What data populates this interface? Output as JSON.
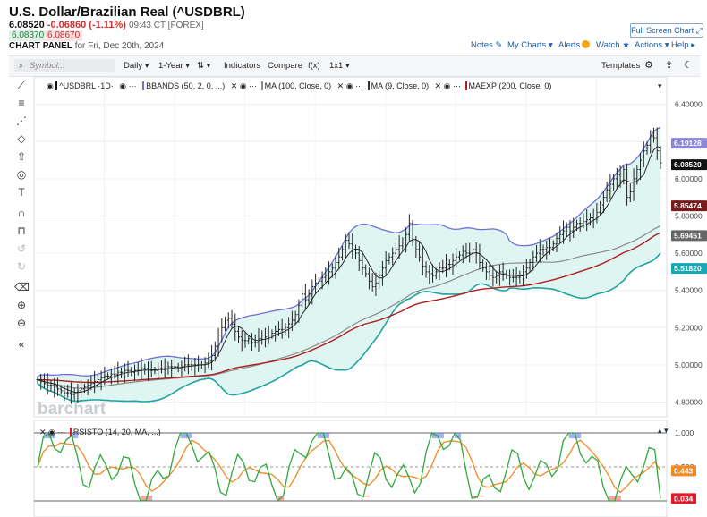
{
  "header": {
    "title": "U.S. Dollar/Brazilian Real (^USDBRL)",
    "last": "6.08520",
    "change": "-0.06860 (-1.11%)",
    "time": "09:43 CT [FOREX]",
    "bid": "6.08370",
    "ask": "6.08670",
    "panel_label": "CHART PANEL",
    "panel_date": "for Fri, Dec 20th, 2024",
    "fullscreen": "Full Screen Chart",
    "links": [
      "Notes",
      "My Charts",
      "Alerts",
      "Watch",
      "Actions",
      "Help"
    ]
  },
  "toolbar": {
    "symbol_placeholder": "Symbol...",
    "items": [
      "Daily",
      "1-Year",
      "Indicators",
      "Compare",
      "f(x)",
      "1x1"
    ],
    "templates": "Templates"
  },
  "legend": {
    "main": "^USDBRL ·1D·",
    "bbands": "BBANDS (50, 2, 0, ...)",
    "ma100": "MA (100, Close, 0)",
    "ma9": "MA (9, Close, 0)",
    "maexp": "MAEXP (200, Close, 0)",
    "rsisto": "RSISTO (14, 20, MA, ...)"
  },
  "watermark": "barchart",
  "colors": {
    "up": "#1a1a1a",
    "bband_upper": "#6f6fd6",
    "bband_lower": "#1fa3a0",
    "bband_fill": "#dff5f2",
    "ma100": "#8a8a8a",
    "ma9": "#2a2a2a",
    "maexp": "#b01e1e",
    "rsi_green": "#2eaa3c",
    "rsi_orange": "#f08a24"
  },
  "badges": [
    {
      "label": "6.19128",
      "color": "#8e84d8"
    },
    {
      "label": "6.08520",
      "color": "#111111"
    },
    {
      "label": "5.85474",
      "color": "#7a1a1a"
    },
    {
      "label": "5.69451",
      "color": "#666666"
    },
    {
      "label": "5.51820",
      "color": "#17a7b6"
    }
  ],
  "rsi_badges": [
    {
      "label": "0.443",
      "color": "#f08a24"
    },
    {
      "label": "0.034",
      "color": "#e0192b"
    }
  ],
  "chart_data": {
    "type": "candlestick",
    "title": "U.S. Dollar/Brazilian Real (^USDBRL)",
    "y_axis": {
      "ticks": [
        4.8,
        5.0,
        5.2,
        5.4,
        5.6,
        5.8,
        6.0,
        6.2,
        6.4
      ],
      "tick_labels": [
        "4.80000",
        "5.00000",
        "5.20000",
        "5.40000",
        "5.60000",
        "5.80000",
        "6.00000",
        "6.20000",
        "6.40000"
      ],
      "ylim": [
        4.74,
        6.48
      ]
    },
    "close": [
      4.92,
      4.91,
      4.9,
      4.89,
      4.89,
      4.88,
      4.87,
      4.86,
      4.85,
      4.85,
      4.84,
      4.85,
      4.86,
      4.87,
      4.88,
      4.89,
      4.9,
      4.91,
      4.92,
      4.93,
      4.94,
      4.94,
      4.95,
      4.95,
      4.96,
      4.96,
      4.97,
      4.97,
      4.96,
      4.97,
      4.97,
      4.98,
      4.98,
      4.97,
      4.97,
      4.97,
      4.98,
      4.98,
      4.98,
      4.99,
      4.99,
      4.99,
      4.98,
      4.99,
      5.0,
      5.0,
      5.0,
      5.0,
      5.0,
      5.0,
      5.01,
      5.02,
      5.05,
      5.1,
      5.16,
      5.2,
      5.24,
      5.25,
      5.22,
      5.18,
      5.15,
      5.13,
      5.13,
      5.14,
      5.12,
      5.12,
      5.14,
      5.16,
      5.15,
      5.16,
      5.17,
      5.18,
      5.19,
      5.19,
      5.2,
      5.22,
      5.24,
      5.27,
      5.32,
      5.38,
      5.35,
      5.38,
      5.42,
      5.44,
      5.45,
      5.47,
      5.48,
      5.5,
      5.52,
      5.55,
      5.58,
      5.62,
      5.67,
      5.65,
      5.62,
      5.6,
      5.56,
      5.52,
      5.49,
      5.45,
      5.42,
      5.44,
      5.48,
      5.52,
      5.56,
      5.58,
      5.6,
      5.62,
      5.64,
      5.66,
      5.7,
      5.76,
      5.66,
      5.62,
      5.58,
      5.53,
      5.5,
      5.49,
      5.48,
      5.5,
      5.52,
      5.52,
      5.54,
      5.54,
      5.56,
      5.58,
      5.59,
      5.61,
      5.6,
      5.6,
      5.62,
      5.6,
      5.55,
      5.52,
      5.5,
      5.48,
      5.47,
      5.48,
      5.5,
      5.49,
      5.48,
      5.47,
      5.47,
      5.47,
      5.48,
      5.5,
      5.52,
      5.55,
      5.58,
      5.6,
      5.62,
      5.62,
      5.63,
      5.63,
      5.65,
      5.68,
      5.7,
      5.72,
      5.74,
      5.72,
      5.74,
      5.76,
      5.76,
      5.77,
      5.78,
      5.79,
      5.8,
      5.82,
      5.86,
      5.9,
      5.94,
      5.97,
      6.0,
      6.02,
      5.99,
      6.05,
      5.9,
      5.93,
      6.0,
      6.05,
      6.1,
      6.15,
      6.18,
      6.23,
      6.22,
      6.15,
      6.085
    ],
    "series": [
      {
        "name": "BBANDS upper",
        "last": 6.19128
      },
      {
        "name": "MAEXP (200)",
        "last": 5.85474
      },
      {
        "name": "MA (100)",
        "last": 5.69451
      },
      {
        "name": "BBANDS lower",
        "last": 5.5182
      }
    ],
    "rsisto": {
      "name": "RSISTO (14, 20, MA, ...)",
      "ticks": [
        0,
        0.5,
        1.0
      ],
      "tick_labels": [
        "0.000",
        "0.500",
        "1.000"
      ],
      "last_fast": 0.034,
      "last_slow": 0.443
    }
  }
}
